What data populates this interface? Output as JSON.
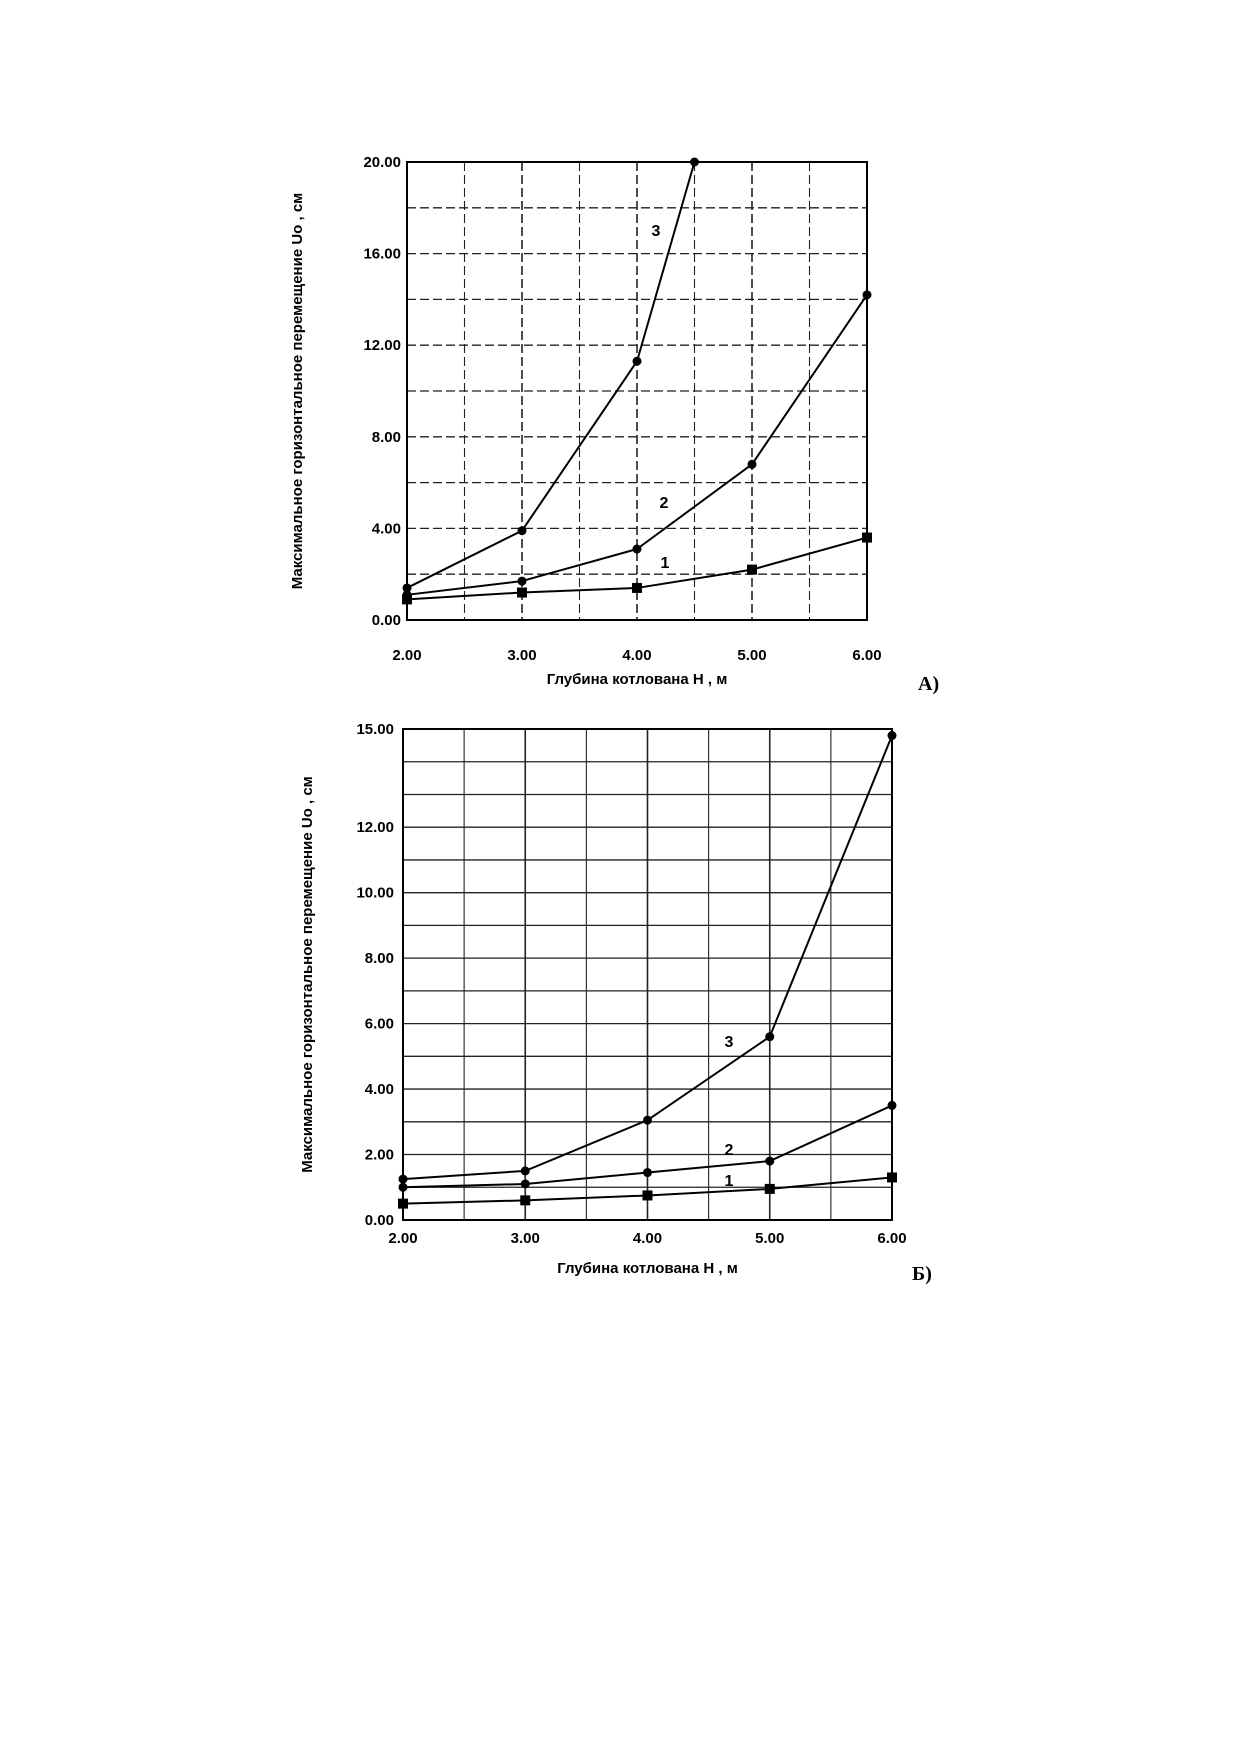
{
  "chart_data": [
    {
      "type": "line",
      "panel_label": "А)",
      "xlabel": "Глубина котлована H , м",
      "ylabel": "Максимальное горизонтальное перемещение Uo , см",
      "xlim": [
        2,
        6
      ],
      "ylim": [
        0,
        20
      ],
      "x_ticks": [
        "2.00",
        "3.00",
        "4.00",
        "5.00",
        "6.00"
      ],
      "y_ticks": [
        "0.00",
        "4.00",
        "8.00",
        "12.00",
        "16.00",
        "20.00"
      ],
      "grid": true,
      "series": [
        {
          "name": "1",
          "marker": "square",
          "x": [
            2,
            3,
            4,
            5,
            6
          ],
          "values": [
            0.9,
            1.2,
            1.4,
            2.2,
            3.6
          ]
        },
        {
          "name": "2",
          "marker": "dot",
          "x": [
            2,
            3,
            4,
            5,
            6
          ],
          "values": [
            1.1,
            1.7,
            3.1,
            6.8,
            14.2
          ]
        },
        {
          "name": "3",
          "marker": "dot",
          "x": [
            2,
            3,
            4,
            4.5
          ],
          "values": [
            1.4,
            3.9,
            11.3,
            20.0
          ]
        }
      ]
    },
    {
      "type": "line",
      "panel_label": "Б)",
      "xlabel": "Глубина котлована H , м",
      "ylabel": "Максимальное горизонтальное перемещение Uo , см",
      "xlim": [
        2,
        6
      ],
      "ylim": [
        0,
        15
      ],
      "x_ticks": [
        "2.00",
        "3.00",
        "4.00",
        "5.00",
        "6.00"
      ],
      "y_ticks": [
        "0.00",
        "2.00",
        "4.00",
        "6.00",
        "8.00",
        "10.00",
        "12.00",
        "15.00"
      ],
      "grid": true,
      "series": [
        {
          "name": "1",
          "marker": "square",
          "x": [
            2,
            3,
            4,
            5,
            6
          ],
          "values": [
            0.5,
            0.6,
            0.75,
            0.95,
            1.3
          ]
        },
        {
          "name": "2",
          "marker": "dot",
          "x": [
            2,
            3,
            4,
            5,
            6
          ],
          "values": [
            1.0,
            1.1,
            1.45,
            1.8,
            3.5
          ]
        },
        {
          "name": "3",
          "marker": "dot",
          "x": [
            2,
            3,
            4,
            5,
            6
          ],
          "values": [
            1.25,
            1.5,
            3.05,
            5.6,
            14.8
          ]
        }
      ]
    }
  ]
}
